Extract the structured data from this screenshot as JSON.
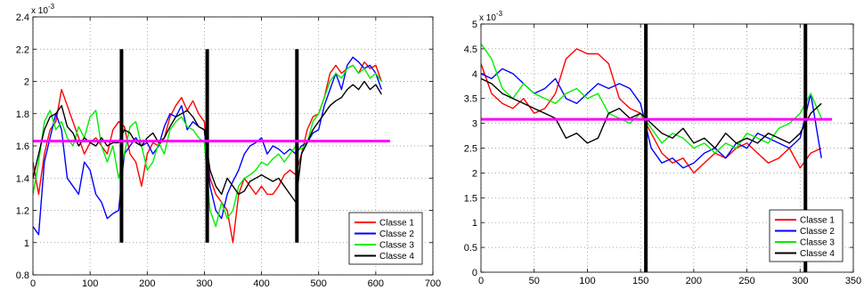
{
  "chart_data": [
    {
      "type": "line",
      "exponent_label": "x 10",
      "exponent_power": "-3",
      "xlim": [
        0,
        700
      ],
      "ylim": [
        0.8,
        2.4
      ],
      "xticks": [
        "0",
        "100",
        "200",
        "300",
        "400",
        "500",
        "600",
        "700"
      ],
      "yticks": [
        "0.8",
        "1",
        "1.2",
        "1.4",
        "1.6",
        "1.8",
        "2",
        "2.2",
        "2.4"
      ],
      "grid": true,
      "legend_position": "lower-right",
      "series": [
        {
          "name": "Classe 1",
          "color": "#ff0000",
          "x": [
            0,
            10,
            20,
            30,
            40,
            50,
            60,
            70,
            80,
            90,
            100,
            110,
            120,
            130,
            140,
            150,
            160,
            170,
            180,
            190,
            200,
            210,
            220,
            230,
            240,
            250,
            260,
            270,
            280,
            290,
            300,
            310,
            320,
            330,
            340,
            350,
            360,
            370,
            380,
            390,
            400,
            410,
            420,
            430,
            440,
            450,
            460,
            470,
            480,
            490,
            500,
            510,
            520,
            530,
            540,
            550,
            560,
            570,
            580,
            590,
            600,
            610
          ],
          "y": [
            1.5,
            1.3,
            1.55,
            1.7,
            1.75,
            1.95,
            1.85,
            1.75,
            1.65,
            1.55,
            1.62,
            1.65,
            1.6,
            1.55,
            1.7,
            1.75,
            1.72,
            1.55,
            1.5,
            1.35,
            1.55,
            1.62,
            1.6,
            1.65,
            1.78,
            1.85,
            1.9,
            1.82,
            1.88,
            1.8,
            1.75,
            1.4,
            1.3,
            1.25,
            1.2,
            1.0,
            1.3,
            1.4,
            1.35,
            1.3,
            1.35,
            1.3,
            1.3,
            1.35,
            1.42,
            1.45,
            1.42,
            1.55,
            1.7,
            1.78,
            1.8,
            1.9,
            2.05,
            2.1,
            2.05,
            2.08,
            2.1,
            2.05,
            2.12,
            2.08,
            2.1,
            2.0
          ]
        },
        {
          "name": "Classe 2",
          "color": "#0000ff",
          "x": [
            0,
            10,
            20,
            30,
            40,
            50,
            60,
            70,
            80,
            90,
            100,
            110,
            120,
            130,
            140,
            150,
            160,
            170,
            180,
            190,
            200,
            210,
            220,
            230,
            240,
            250,
            260,
            270,
            280,
            290,
            300,
            310,
            320,
            330,
            340,
            350,
            360,
            370,
            380,
            390,
            400,
            410,
            420,
            430,
            440,
            450,
            460,
            470,
            480,
            490,
            500,
            510,
            520,
            530,
            540,
            550,
            560,
            570,
            580,
            590,
            600,
            610
          ],
          "y": [
            1.1,
            1.05,
            1.5,
            1.65,
            1.8,
            1.7,
            1.4,
            1.35,
            1.3,
            1.5,
            1.45,
            1.3,
            1.25,
            1.15,
            1.18,
            1.2,
            1.55,
            1.6,
            1.65,
            1.6,
            1.62,
            1.55,
            1.6,
            1.72,
            1.8,
            1.78,
            1.85,
            1.7,
            1.75,
            1.72,
            1.7,
            1.35,
            1.2,
            1.15,
            1.3,
            1.38,
            1.45,
            1.55,
            1.6,
            1.62,
            1.65,
            1.55,
            1.6,
            1.58,
            1.55,
            1.58,
            1.55,
            1.6,
            1.62,
            1.68,
            1.7,
            1.85,
            1.95,
            2.05,
            1.95,
            2.1,
            2.15,
            2.12,
            2.08,
            2.1,
            2.05,
            1.95
          ]
        },
        {
          "name": "Classe 3",
          "color": "#00ee00",
          "x": [
            0,
            10,
            20,
            30,
            40,
            50,
            60,
            70,
            80,
            90,
            100,
            110,
            120,
            130,
            140,
            150,
            160,
            170,
            180,
            190,
            200,
            210,
            220,
            230,
            240,
            250,
            260,
            270,
            280,
            290,
            300,
            310,
            320,
            330,
            340,
            350,
            360,
            370,
            380,
            390,
            400,
            410,
            420,
            430,
            440,
            450,
            460,
            470,
            480,
            490,
            500,
            510,
            520,
            530,
            540,
            550,
            560,
            570,
            580,
            590,
            600,
            610
          ],
          "y": [
            1.3,
            1.5,
            1.75,
            1.82,
            1.7,
            1.75,
            1.65,
            1.6,
            1.72,
            1.65,
            1.78,
            1.82,
            1.6,
            1.5,
            1.6,
            1.4,
            1.55,
            1.72,
            1.75,
            1.6,
            1.45,
            1.5,
            1.62,
            1.55,
            1.7,
            1.75,
            1.78,
            1.72,
            1.7,
            1.65,
            1.62,
            1.2,
            1.1,
            1.25,
            1.15,
            1.2,
            1.35,
            1.4,
            1.42,
            1.45,
            1.5,
            1.48,
            1.52,
            1.55,
            1.5,
            1.55,
            1.6,
            1.58,
            1.62,
            1.75,
            1.8,
            1.9,
            2.0,
            2.05,
            2.02,
            2.08,
            2.1,
            2.05,
            2.08,
            2.02,
            2.05,
            2.0
          ]
        },
        {
          "name": "Classe 4",
          "color": "#000000",
          "x": [
            0,
            10,
            20,
            30,
            40,
            50,
            60,
            70,
            80,
            90,
            100,
            110,
            120,
            130,
            140,
            150,
            160,
            170,
            180,
            190,
            200,
            210,
            220,
            230,
            240,
            250,
            260,
            270,
            280,
            290,
            300,
            310,
            320,
            330,
            340,
            350,
            360,
            370,
            380,
            390,
            400,
            410,
            420,
            430,
            440,
            450,
            460,
            470,
            480,
            490,
            500,
            510,
            520,
            530,
            540,
            550,
            560,
            570,
            580,
            590,
            600,
            610
          ],
          "y": [
            1.4,
            1.55,
            1.7,
            1.78,
            1.8,
            1.85,
            1.72,
            1.68,
            1.6,
            1.65,
            1.62,
            1.6,
            1.65,
            1.6,
            1.62,
            1.62,
            1.7,
            1.68,
            1.62,
            1.6,
            1.65,
            1.68,
            1.62,
            1.65,
            1.72,
            1.78,
            1.8,
            1.82,
            1.78,
            1.72,
            1.7,
            1.45,
            1.35,
            1.3,
            1.4,
            1.35,
            1.3,
            1.32,
            1.38,
            1.4,
            1.42,
            1.4,
            1.38,
            1.4,
            1.35,
            1.3,
            1.25,
            1.55,
            1.62,
            1.7,
            1.75,
            1.8,
            1.85,
            1.88,
            1.9,
            1.95,
            1.98,
            1.95,
            2.0,
            1.95,
            1.98,
            1.92
          ]
        }
      ],
      "vlines": [
        {
          "x": 155,
          "y0": 1.0,
          "y1": 2.2
        },
        {
          "x": 305,
          "y0": 1.0,
          "y1": 2.2
        },
        {
          "x": 462,
          "y0": 1.0,
          "y1": 2.2
        }
      ],
      "hline": {
        "y": 1.63,
        "x0": 0,
        "x1": 625,
        "color": "#ff00ff"
      }
    },
    {
      "type": "line",
      "exponent_label": "x 10",
      "exponent_power": "-3",
      "xlim": [
        0,
        350
      ],
      "ylim": [
        0,
        5
      ],
      "xticks": [
        "0",
        "50",
        "100",
        "150",
        "200",
        "250",
        "300",
        "350"
      ],
      "yticks": [
        "0",
        "0.5",
        "1",
        "1.5",
        "2",
        "2.5",
        "3",
        "3.5",
        "4",
        "4.5",
        "5"
      ],
      "grid": true,
      "legend_position": "lower-right",
      "series": [
        {
          "name": "Classe 1",
          "color": "#ff0000",
          "x": [
            0,
            10,
            20,
            30,
            40,
            50,
            60,
            70,
            80,
            90,
            100,
            110,
            120,
            130,
            140,
            150,
            160,
            170,
            180,
            190,
            200,
            210,
            220,
            230,
            240,
            250,
            260,
            270,
            280,
            290,
            300,
            310,
            320
          ],
          "y": [
            4.2,
            3.6,
            3.4,
            3.3,
            3.5,
            3.2,
            3.3,
            3.6,
            4.3,
            4.5,
            4.4,
            4.4,
            4.2,
            3.5,
            3.3,
            3.2,
            2.8,
            2.4,
            2.2,
            2.3,
            2.0,
            2.2,
            2.4,
            2.3,
            2.5,
            2.6,
            2.4,
            2.2,
            2.3,
            2.5,
            2.1,
            2.4,
            2.5
          ]
        },
        {
          "name": "Classe 2",
          "color": "#0000ff",
          "x": [
            0,
            10,
            20,
            30,
            40,
            50,
            60,
            70,
            80,
            90,
            100,
            110,
            120,
            130,
            140,
            150,
            160,
            170,
            180,
            190,
            200,
            210,
            220,
            230,
            240,
            250,
            260,
            270,
            280,
            290,
            300,
            310,
            320
          ],
          "y": [
            4.0,
            3.9,
            4.1,
            4.0,
            3.8,
            3.6,
            3.7,
            3.9,
            3.5,
            3.4,
            3.6,
            3.8,
            3.7,
            3.8,
            3.7,
            3.4,
            2.5,
            2.2,
            2.3,
            2.1,
            2.2,
            2.4,
            2.5,
            2.3,
            2.6,
            2.5,
            2.8,
            2.7,
            2.6,
            2.5,
            2.7,
            3.6,
            2.3
          ]
        },
        {
          "name": "Classe 3",
          "color": "#00ee00",
          "x": [
            0,
            10,
            20,
            30,
            40,
            50,
            60,
            70,
            80,
            90,
            100,
            110,
            120,
            130,
            140,
            150,
            160,
            170,
            180,
            190,
            200,
            210,
            220,
            230,
            240,
            250,
            260,
            270,
            280,
            290,
            300,
            310,
            320
          ],
          "y": [
            4.6,
            4.3,
            3.7,
            3.5,
            3.8,
            3.6,
            3.5,
            3.4,
            3.6,
            3.7,
            3.5,
            3.6,
            3.2,
            3.1,
            3.0,
            3.2,
            2.9,
            2.6,
            2.8,
            2.7,
            2.5,
            2.6,
            2.4,
            2.6,
            2.5,
            2.8,
            2.7,
            2.6,
            2.9,
            3.0,
            3.2,
            3.6,
            3.1
          ]
        },
        {
          "name": "Classe 4",
          "color": "#000000",
          "x": [
            0,
            10,
            20,
            30,
            40,
            50,
            60,
            70,
            80,
            90,
            100,
            110,
            120,
            130,
            140,
            150,
            160,
            170,
            180,
            190,
            200,
            210,
            220,
            230,
            240,
            250,
            260,
            270,
            280,
            290,
            300,
            310,
            320
          ],
          "y": [
            3.9,
            3.8,
            3.6,
            3.5,
            3.4,
            3.3,
            3.2,
            3.1,
            2.7,
            2.8,
            2.6,
            2.7,
            3.2,
            3.3,
            3.1,
            3.2,
            3.0,
            2.8,
            2.7,
            2.9,
            2.6,
            2.7,
            2.5,
            2.8,
            2.6,
            2.7,
            2.6,
            2.8,
            2.7,
            2.6,
            2.8,
            3.2,
            3.4
          ]
        }
      ],
      "vlines": [
        {
          "x": 155,
          "y0": 0,
          "y1": 5
        },
        {
          "x": 305,
          "y0": 0,
          "y1": 5
        }
      ],
      "hline": {
        "y": 3.08,
        "x0": 0,
        "x1": 330,
        "color": "#ff00ff"
      }
    }
  ]
}
